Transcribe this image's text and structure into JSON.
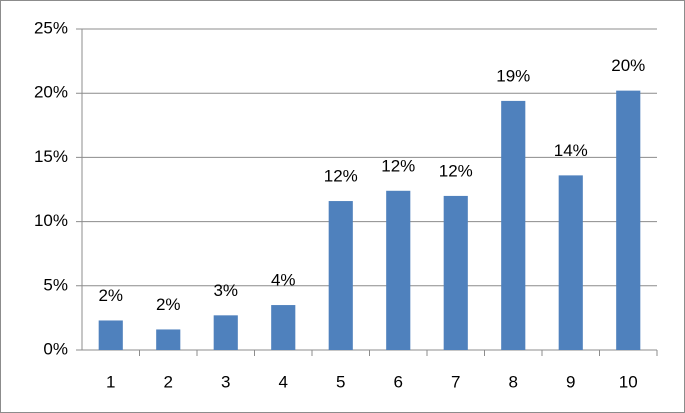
{
  "chart_data": {
    "type": "bar",
    "categories": [
      "1",
      "2",
      "3",
      "4",
      "5",
      "6",
      "7",
      "8",
      "9",
      "10"
    ],
    "values": [
      2.3,
      1.6,
      2.7,
      3.5,
      11.6,
      12.4,
      12.0,
      19.4,
      13.6,
      20.2
    ],
    "value_labels": [
      "2%",
      "2%",
      "3%",
      "4%",
      "12%",
      "12%",
      "12%",
      "19%",
      "14%",
      "20%"
    ],
    "color": "#4f81bd",
    "ylim": [
      0,
      25
    ],
    "yticks": [
      {
        "value": 0,
        "label": "0%"
      },
      {
        "value": 5,
        "label": "5%"
      },
      {
        "value": 10,
        "label": "10%"
      },
      {
        "value": 15,
        "label": "15%"
      },
      {
        "value": 20,
        "label": "20%"
      },
      {
        "value": 25,
        "label": "25%"
      }
    ],
    "grid": true
  }
}
